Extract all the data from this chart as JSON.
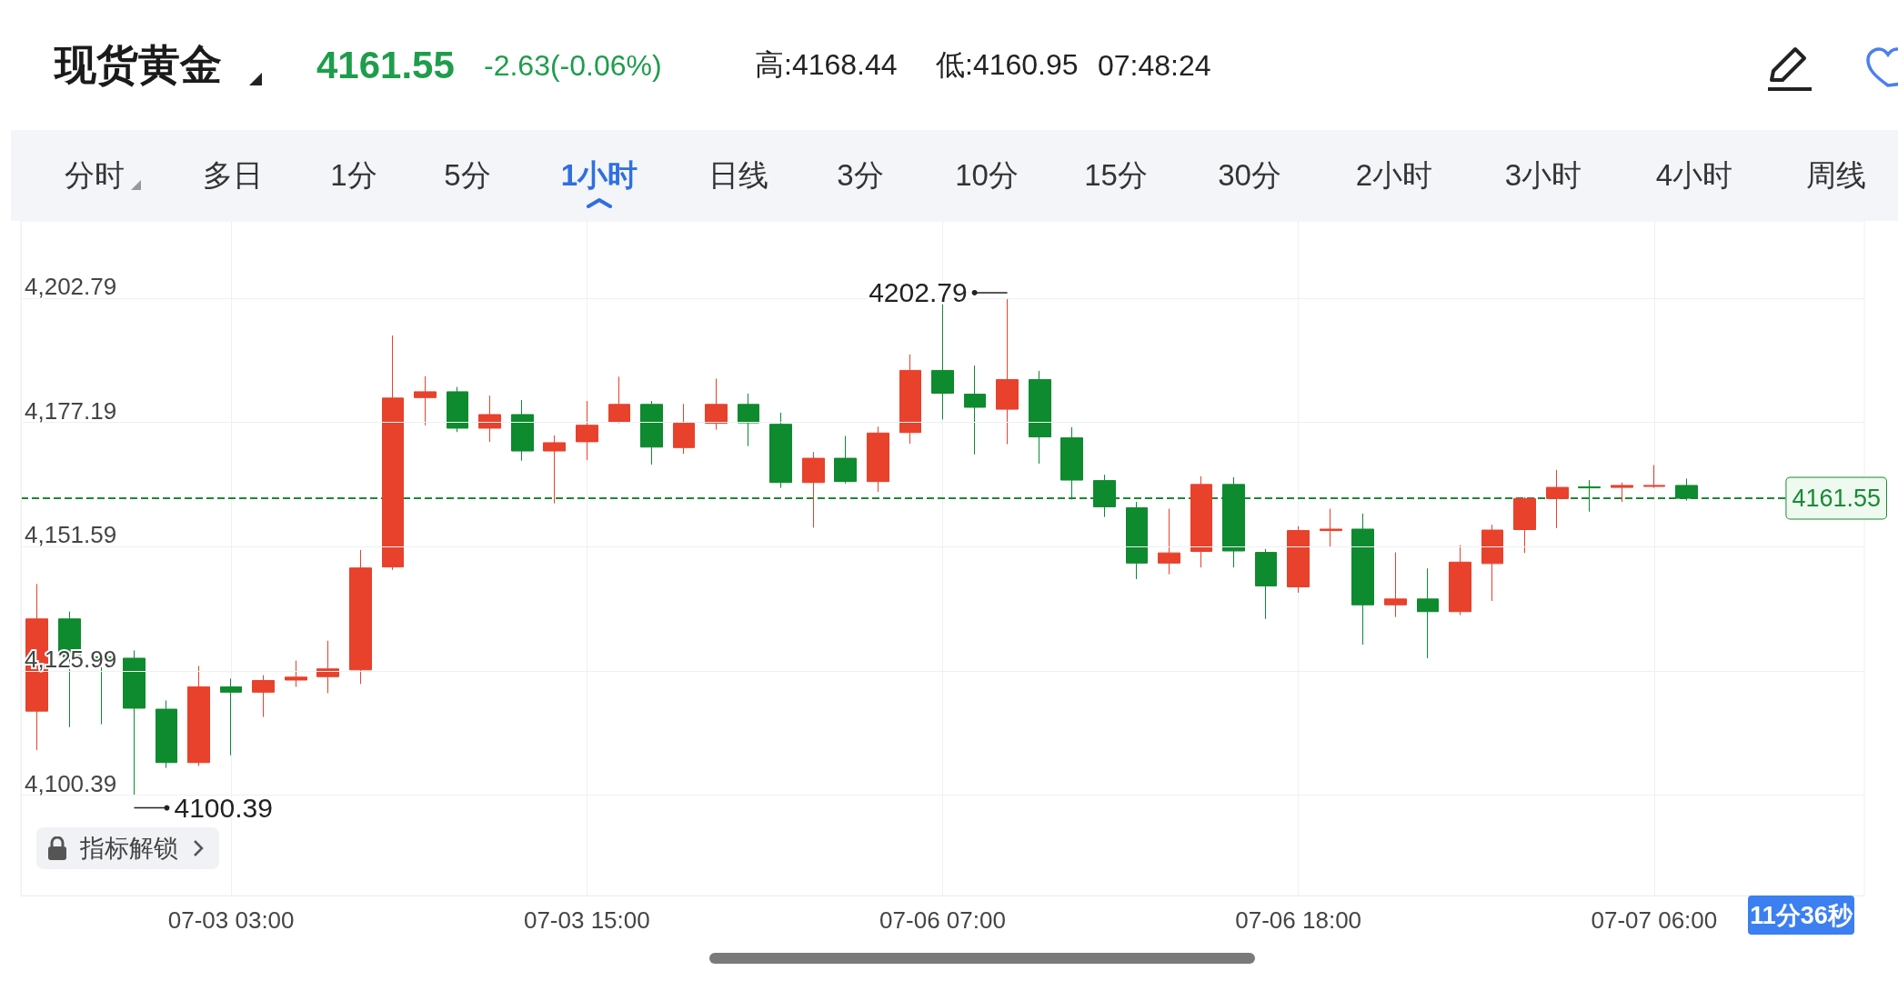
{
  "chart_data": {
    "type": "candlestick",
    "title": "现货黄金",
    "categories": [
      null,
      null,
      null,
      null,
      null,
      null,
      "07-03 03:00",
      null,
      null,
      null,
      null,
      null,
      null,
      null,
      null,
      null,
      null,
      "07-03 15:00",
      null,
      null,
      null,
      null,
      null,
      null,
      null,
      null,
      null,
      null,
      "07-06 07:00",
      null,
      null,
      null,
      null,
      null,
      null,
      null,
      null,
      null,
      null,
      "07-06 18:00",
      null,
      null,
      null,
      null,
      null,
      null,
      null,
      null,
      null,
      null,
      "07-07 06:00",
      null
    ],
    "ohlc": [
      [
        4117.7,
        4143.9,
        4109.7,
        4136.7
      ],
      [
        4136.7,
        4138.2,
        4114.4,
        4128.9
      ],
      [
        4128.9,
        4129.0,
        4115.0,
        4128.7
      ],
      [
        4128.6,
        4130.2,
        4100.39,
        4118.3
      ],
      [
        4118.1,
        4119.9,
        4106.0,
        4107.1
      ],
      [
        4107.1,
        4127.0,
        4106.4,
        4122.7
      ],
      [
        4122.7,
        4124.4,
        4108.6,
        4121.6
      ],
      [
        4121.6,
        4125.1,
        4116.5,
        4124.0
      ],
      [
        4124.1,
        4128.1,
        4122.7,
        4124.7
      ],
      [
        4124.8,
        4132.2,
        4121.4,
        4126.4
      ],
      [
        4126.2,
        4150.9,
        4123.3,
        4147.2
      ],
      [
        4147.4,
        4195.1,
        4146.8,
        4182.2
      ],
      [
        4182.3,
        4186.7,
        4176.6,
        4183.5
      ],
      [
        4183.5,
        4184.5,
        4175.2,
        4176.0
      ],
      [
        4176.0,
        4182.7,
        4173.2,
        4178.8
      ],
      [
        4178.8,
        4181.8,
        4169.3,
        4171.3
      ],
      [
        4171.3,
        4174.5,
        4160.5,
        4173.0
      ],
      [
        4173.2,
        4181.6,
        4169.4,
        4176.6
      ],
      [
        4177.3,
        4186.6,
        4177.0,
        4180.9
      ],
      [
        4180.9,
        4181.6,
        4168.5,
        4172.1
      ],
      [
        4172.0,
        4181.0,
        4170.7,
        4177.0
      ],
      [
        4177.0,
        4186.2,
        4175.7,
        4180.9
      ],
      [
        4180.9,
        4183.1,
        4172.3,
        4177.1
      ],
      [
        4176.8,
        4179.2,
        4163.7,
        4164.8
      ],
      [
        4164.8,
        4171.1,
        4155.5,
        4169.8
      ],
      [
        4169.8,
        4174.4,
        4164.6,
        4165.0
      ],
      [
        4165.0,
        4176.3,
        4162.9,
        4175.0
      ],
      [
        4175.1,
        4191.2,
        4172.8,
        4187.9
      ],
      [
        4187.9,
        4201.5,
        4177.8,
        4183.2
      ],
      [
        4183.0,
        4188.9,
        4170.6,
        4180.3
      ],
      [
        4179.9,
        4202.79,
        4172.7,
        4186.0
      ],
      [
        4186.0,
        4187.8,
        4168.7,
        4174.2
      ],
      [
        4174.0,
        4176.2,
        4161.3,
        4165.3
      ],
      [
        4165.2,
        4166.4,
        4157.7,
        4159.8
      ],
      [
        4159.6,
        4160.8,
        4144.9,
        4148.2
      ],
      [
        4148.2,
        4159.4,
        4145.9,
        4150.3
      ],
      [
        4150.6,
        4166.1,
        4147.3,
        4164.4
      ],
      [
        4164.4,
        4165.9,
        4147.3,
        4150.7
      ],
      [
        4150.4,
        4151.1,
        4136.7,
        4143.5
      ],
      [
        4143.3,
        4155.8,
        4142.1,
        4154.9
      ],
      [
        4154.9,
        4159.4,
        4151.5,
        4155.2
      ],
      [
        4155.2,
        4158.4,
        4131.4,
        4139.6
      ],
      [
        4139.6,
        4150.4,
        4137.1,
        4140.8
      ],
      [
        4140.8,
        4147.1,
        4128.6,
        4138.2
      ],
      [
        4138.2,
        4151.9,
        4137.5,
        4148.4
      ],
      [
        4148.1,
        4156.1,
        4140.4,
        4155.0
      ],
      [
        4155.1,
        4161.8,
        4150.3,
        4161.5
      ],
      [
        4161.5,
        4167.4,
        4155.4,
        4163.8
      ],
      [
        4163.9,
        4165.3,
        4158.8,
        4163.7
      ],
      [
        4163.8,
        4164.8,
        4160.8,
        4164.2
      ],
      [
        4164.0,
        4168.4,
        4163.7,
        4164.2
      ],
      [
        4164.2,
        4165.6,
        4161.1,
        4161.55
      ]
    ],
    "ylim": [
      4079.7,
      4218.7
    ],
    "yticks": [
      {
        "value": 4100.39,
        "label": "4,100.39"
      },
      {
        "value": 4125.99,
        "label": "4,125.99"
      },
      {
        "value": 4151.59,
        "label": "4,151.59"
      },
      {
        "value": 4177.19,
        "label": "4,177.19"
      },
      {
        "value": 4202.79,
        "label": "4,202.79"
      }
    ],
    "grid": true,
    "ref_lines": [
      {
        "axis": "y",
        "value": 4161.55,
        "label": "4161.55",
        "color": "#1a8a34",
        "line_style": "dashed"
      }
    ],
    "annotations": [
      "4161.55",
      "-2.63(-0.06%)",
      "高:4168.44",
      "低:4160.95",
      "07:48:24",
      "分时",
      "多日",
      "1分",
      "5分",
      "1小时",
      "日线",
      "3分",
      "10分",
      "15分",
      "30分",
      "2小时",
      "3小时",
      "4小时",
      "周线",
      "指标解锁",
      "11分36秒",
      "4202.79",
      "4100.39"
    ]
  }
}
